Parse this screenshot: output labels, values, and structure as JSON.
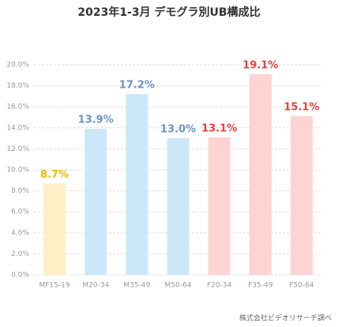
{
  "chart_data": {
    "type": "bar",
    "title": "2023年1-3月 デモグラ別UB構成比",
    "categories": [
      "MF15-19",
      "M20-34",
      "M35-49",
      "M50-64",
      "F20-34",
      "F35-49",
      "F50-64"
    ],
    "values": [
      8.7,
      13.9,
      17.2,
      13.0,
      13.1,
      19.1,
      15.1
    ],
    "value_labels": [
      "8.7%",
      "13.9%",
      "17.2%",
      "13.0%",
      "13.1%",
      "19.1%",
      "15.1%"
    ],
    "colors": [
      "#fdf0c6",
      "#cce8f8",
      "#cce8f8",
      "#cce8f8",
      "#fdd3d3",
      "#fdd3d3",
      "#fdd3d3"
    ],
    "label_colors": [
      "#f2b705",
      "#6e93cc",
      "#6e93cc",
      "#6e93cc",
      "#e8403c",
      "#e8403c",
      "#e8403c"
    ],
    "ylim": [
      0,
      20
    ],
    "yticks": [
      {
        "value": 0,
        "label": "0.0%"
      },
      {
        "value": 2,
        "label": "2.0%"
      },
      {
        "value": 4,
        "label": "4.0%"
      },
      {
        "value": 6,
        "label": "6.0%"
      },
      {
        "value": 8,
        "label": "8.0%"
      },
      {
        "value": 10,
        "label": "10.0%"
      },
      {
        "value": 12,
        "label": "12.0%"
      },
      {
        "value": 14,
        "label": "14.0%"
      },
      {
        "value": 16,
        "label": "16.0%"
      },
      {
        "value": 18,
        "label": "18.0%"
      },
      {
        "value": 20,
        "label": "20.0%"
      }
    ],
    "grid": true,
    "source": "株式会社ビデオリサーチ調べ"
  }
}
